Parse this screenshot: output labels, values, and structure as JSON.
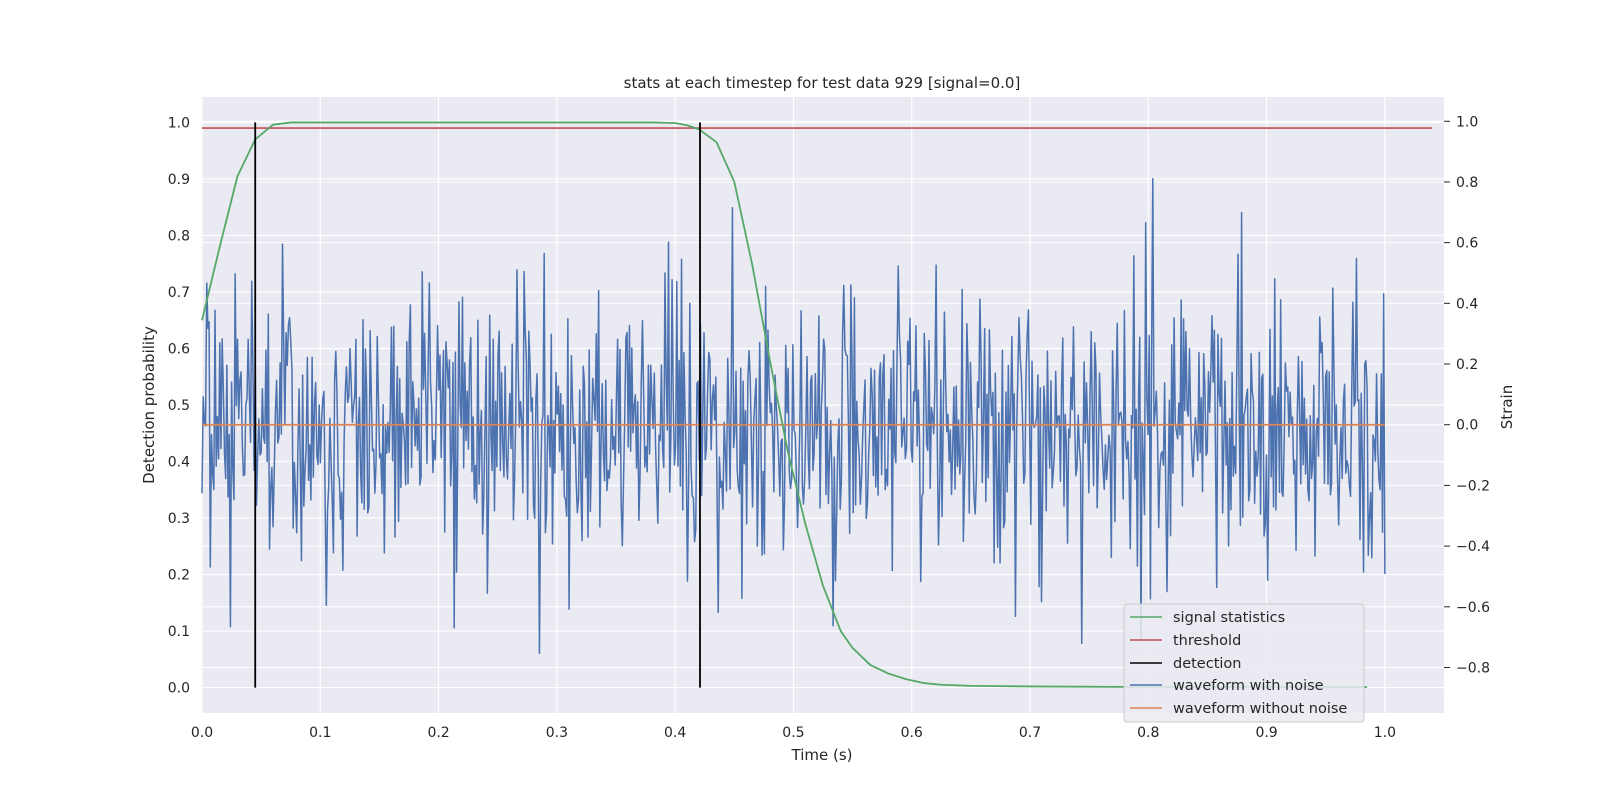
{
  "chart_data": {
    "type": "line",
    "title": "stats at each timestep for test data 929 [signal=0.0]",
    "xlabel": "Time (s)",
    "ylabel": "Detection probability",
    "y2label": "Strain",
    "xlim": [
      0.0,
      1.05
    ],
    "ylim": [
      -0.045,
      1.045
    ],
    "y2lim": [
      -0.95,
      1.08
    ],
    "xticks": [
      "0.0",
      "0.1",
      "0.2",
      "0.3",
      "0.4",
      "0.5",
      "0.6",
      "0.7",
      "0.8",
      "0.9",
      "1.0"
    ],
    "yticks": [
      "0.0",
      "0.1",
      "0.2",
      "0.3",
      "0.4",
      "0.5",
      "0.6",
      "0.7",
      "0.8",
      "0.9",
      "1.0"
    ],
    "y2ticks": [
      "−0.8",
      "−0.6",
      "−0.4",
      "−0.2",
      "0.0",
      "0.2",
      "0.4",
      "0.6",
      "0.8",
      "1.0"
    ],
    "grid": true,
    "legend_position": "lower-right",
    "colors": {
      "signal_statistics": "#55a868",
      "threshold": "#c44e52",
      "detection": "#000000",
      "waveform_with_noise": "#4c72b0",
      "waveform_without_noise": "#dd8452",
      "plot_background": "#eaeaf2",
      "grid": "#ffffff"
    },
    "series": [
      {
        "name": "signal statistics",
        "axis": "left",
        "x": [
          0.0,
          0.015,
          0.03,
          0.045,
          0.06,
          0.075,
          0.1,
          0.2,
          0.3,
          0.38,
          0.4,
          0.41,
          0.42,
          0.435,
          0.45,
          0.465,
          0.48,
          0.495,
          0.51,
          0.525,
          0.54,
          0.55,
          0.565,
          0.58,
          0.595,
          0.61,
          0.625,
          0.65,
          0.7,
          0.8,
          0.9,
          0.985
        ],
        "y": [
          0.65,
          0.78,
          0.905,
          0.97,
          0.996,
          1.0,
          1.0,
          1.0,
          1.0,
          1.0,
          0.999,
          0.995,
          0.988,
          0.965,
          0.895,
          0.75,
          0.58,
          0.42,
          0.29,
          0.18,
          0.1,
          0.07,
          0.04,
          0.025,
          0.015,
          0.008,
          0.005,
          0.003,
          0.002,
          0.001,
          0.001,
          0.001
        ]
      },
      {
        "name": "threshold",
        "axis": "left",
        "x": [
          0.0,
          1.04
        ],
        "y": [
          0.99,
          0.99
        ]
      },
      {
        "name": "detection",
        "axis": "left",
        "x_positions": [
          0.045,
          0.421
        ],
        "y_range": [
          0.0,
          1.0
        ]
      },
      {
        "name": "waveform with noise",
        "axis": "right",
        "x_start": 0.0,
        "x_end": 1.0,
        "mean": 0.0,
        "std": 0.23,
        "ymin": -0.87,
        "ymax": 1.0
      },
      {
        "name": "waveform without noise",
        "axis": "right",
        "x": [
          0.0,
          1.0
        ],
        "y": [
          0.0,
          0.0
        ]
      }
    ]
  }
}
